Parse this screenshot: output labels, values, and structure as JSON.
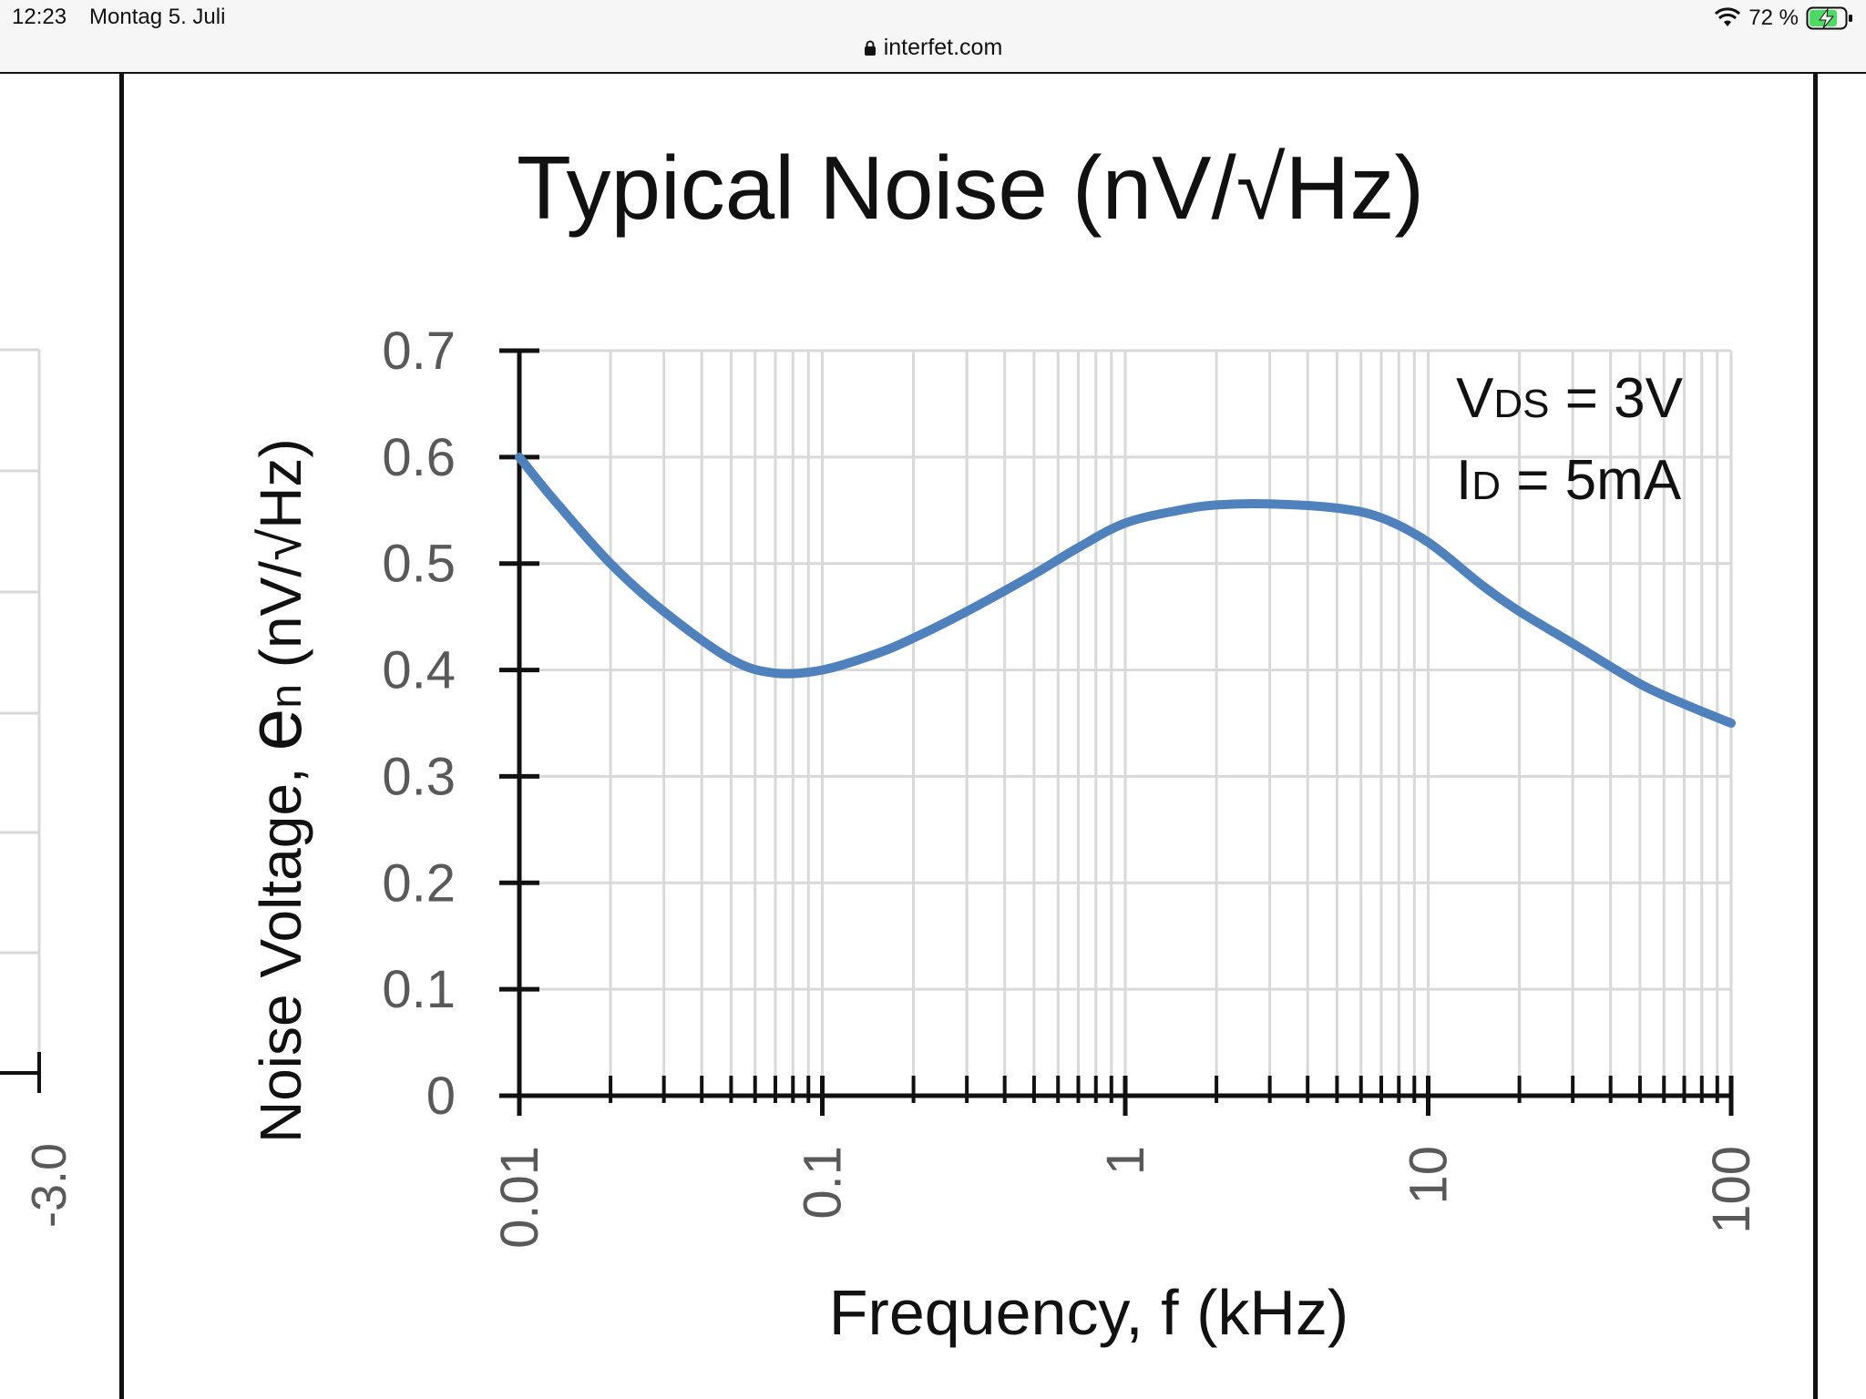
{
  "status_bar": {
    "time": "12:23",
    "date": "Montag 5. Juli",
    "battery": "72 %",
    "icons": [
      "wifi-icon",
      "battery-charging-icon"
    ]
  },
  "browser": {
    "url": "interfet.com",
    "icons": [
      "lock-icon"
    ]
  },
  "left_partial_chart": {
    "tick_label": "-3.0"
  },
  "colors": {
    "curve": "#4f81bd",
    "gridline": "#d9d9d9",
    "axis": "#111111",
    "tick_label": "#595959"
  },
  "chart_data": {
    "type": "line",
    "title": "Typical Noise (nV/√Hz)",
    "xlabel": "Frequency, f (kHz)",
    "ylabel": {
      "prefix": "Noise Voltage, ",
      "symbol": "e",
      "subscript": "n",
      "suffix": " (nV/√Hz)"
    },
    "xscale": "log",
    "xlim": [
      0.01,
      100
    ],
    "ylim": [
      0,
      0.7
    ],
    "grid": true,
    "x_ticks": [
      "0.01",
      "0.1",
      "1",
      "10",
      "100"
    ],
    "y_ticks": [
      "0",
      "0.1",
      "0.2",
      "0.3",
      "0.4",
      "0.5",
      "0.6",
      "0.7"
    ],
    "annotations": [
      {
        "main": "V",
        "sub": "DS",
        "rest": " = 3V"
      },
      {
        "main": "I",
        "sub": "D",
        "rest": " = 5mA"
      }
    ],
    "series": [
      {
        "x": [
          0.01,
          0.013,
          0.02,
          0.03,
          0.05,
          0.07,
          0.1,
          0.15,
          0.2,
          0.3,
          0.5,
          0.7,
          1,
          1.5,
          2,
          3,
          5,
          7,
          10,
          15,
          20,
          30,
          50,
          70,
          100
        ],
        "y": [
          0.6,
          0.56,
          0.5,
          0.455,
          0.41,
          0.397,
          0.4,
          0.415,
          0.43,
          0.455,
          0.49,
          0.515,
          0.538,
          0.55,
          0.555,
          0.556,
          0.552,
          0.543,
          0.52,
          0.48,
          0.455,
          0.425,
          0.387,
          0.368,
          0.35
        ]
      }
    ]
  }
}
